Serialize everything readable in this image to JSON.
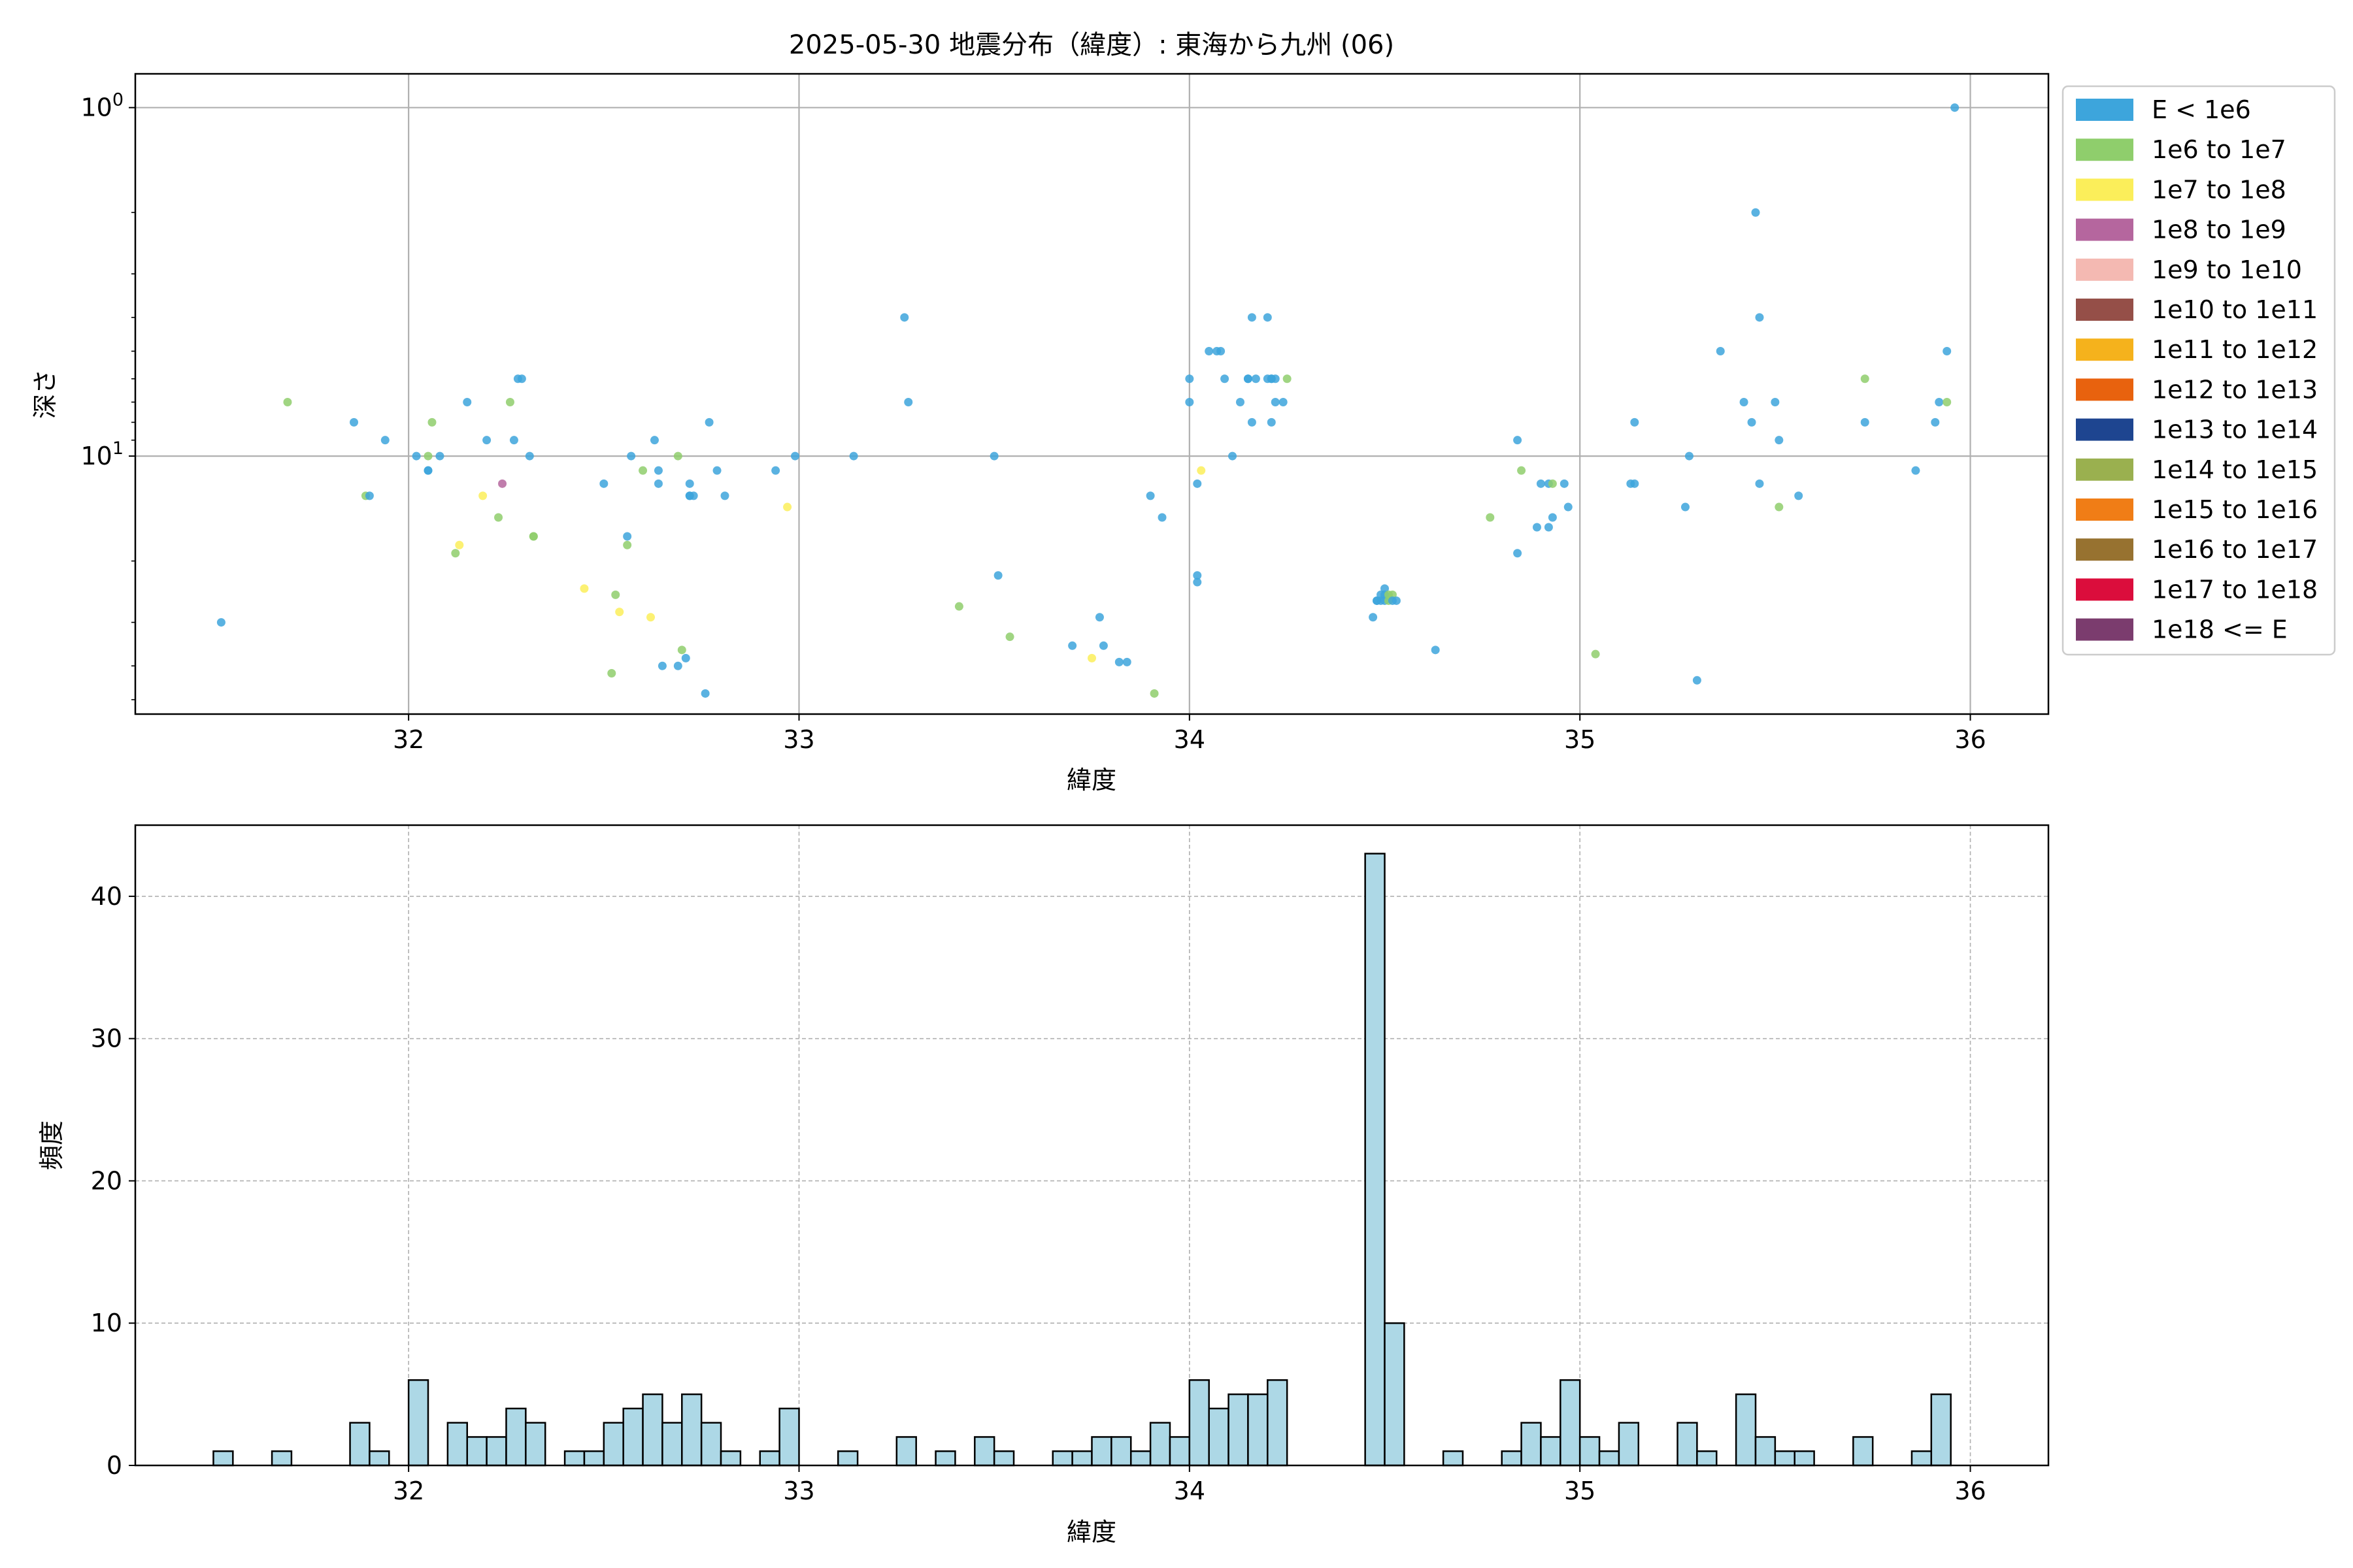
{
  "title": "2025-05-30 地震分布（緯度）: 東海から九州 (06)",
  "chart_data": [
    {
      "type": "scatter",
      "title": "2025-05-30 地震分布（緯度）: 東海から九州 (06)",
      "xlabel": "緯度",
      "ylabel": "深さ",
      "xlim": [
        31.3,
        36.2
      ],
      "ylim": [
        55,
        0.8
      ],
      "yscale": "log",
      "y_inverted": true,
      "grid": true,
      "x_ticks": [
        32,
        33,
        34,
        35,
        36
      ],
      "y_ticks": [
        1,
        10
      ],
      "legend_placement": "outside-right",
      "legend": [
        {
          "label": "E < 1e6",
          "color": "#3da5dc"
        },
        {
          "label": "1e6 to 1e7",
          "color": "#8fce6c"
        },
        {
          "label": "1e7 to 1e8",
          "color": "#fbee5a"
        },
        {
          "label": "1e8 to 1e9",
          "color": "#b5669e"
        },
        {
          "label": "1e9 to 1e10",
          "color": "#f4b9b2"
        },
        {
          "label": "1e10 to 1e11",
          "color": "#954f48"
        },
        {
          "label": "1e11 to 1e12",
          "color": "#f5b21c"
        },
        {
          "label": "1e12 to 1e13",
          "color": "#e8620e"
        },
        {
          "label": "1e13 to 1e14",
          "color": "#1e4590"
        },
        {
          "label": "1e14 to 1e15",
          "color": "#9ab04f"
        },
        {
          "label": "1e15 to 1e16",
          "color": "#f07d16"
        },
        {
          "label": "1e16 to 1e17",
          "color": "#977230"
        },
        {
          "label": "1e17 to 1e18",
          "color": "#db0d3c"
        },
        {
          "label": "1e18 <= E",
          "color": "#7b3c6e"
        }
      ],
      "points": [
        [
          31.52,
          30,
          0
        ],
        [
          31.69,
          7,
          1
        ],
        [
          31.86,
          8,
          0
        ],
        [
          31.89,
          13,
          1
        ],
        [
          31.9,
          13,
          0
        ],
        [
          31.94,
          9,
          0
        ],
        [
          32.02,
          10,
          0
        ],
        [
          32.05,
          11,
          0
        ],
        [
          32.05,
          10,
          1
        ],
        [
          32.06,
          8,
          1
        ],
        [
          32.05,
          11,
          0
        ],
        [
          32.08,
          10,
          0
        ],
        [
          32.12,
          19,
          1
        ],
        [
          32.13,
          18,
          2
        ],
        [
          32.15,
          7,
          0
        ],
        [
          32.19,
          13,
          2
        ],
        [
          32.2,
          9,
          0
        ],
        [
          32.23,
          15,
          1
        ],
        [
          32.24,
          12,
          3
        ],
        [
          32.26,
          7,
          1
        ],
        [
          32.27,
          9,
          0
        ],
        [
          32.28,
          6,
          0
        ],
        [
          32.29,
          6,
          0
        ],
        [
          32.31,
          10,
          0
        ],
        [
          32.32,
          17,
          1
        ],
        [
          32.32,
          17,
          1
        ],
        [
          32.45,
          24,
          2
        ],
        [
          32.5,
          12,
          0
        ],
        [
          32.52,
          42,
          1
        ],
        [
          32.53,
          25,
          1
        ],
        [
          32.54,
          28,
          2
        ],
        [
          32.56,
          18,
          1
        ],
        [
          32.56,
          17,
          0
        ],
        [
          32.57,
          10,
          0
        ],
        [
          32.6,
          11,
          1
        ],
        [
          32.62,
          29,
          2
        ],
        [
          32.63,
          9,
          0
        ],
        [
          32.64,
          12,
          0
        ],
        [
          32.64,
          11,
          0
        ],
        [
          32.65,
          40,
          0
        ],
        [
          32.69,
          10,
          1
        ],
        [
          32.69,
          40,
          0
        ],
        [
          32.7,
          36,
          1
        ],
        [
          32.71,
          38,
          0
        ],
        [
          32.72,
          12,
          0
        ],
        [
          32.72,
          13,
          0
        ],
        [
          32.72,
          13,
          0
        ],
        [
          32.73,
          13,
          0
        ],
        [
          32.76,
          48,
          0
        ],
        [
          32.77,
          8,
          0
        ],
        [
          32.79,
          11,
          0
        ],
        [
          32.81,
          13,
          0
        ],
        [
          32.94,
          11,
          0
        ],
        [
          32.97,
          14,
          2
        ],
        [
          32.99,
          10,
          0
        ],
        [
          33.14,
          10,
          0
        ],
        [
          33.27,
          4,
          0
        ],
        [
          33.28,
          7,
          0
        ],
        [
          33.41,
          27,
          1
        ],
        [
          33.5,
          10,
          0
        ],
        [
          33.51,
          22,
          0
        ],
        [
          33.54,
          33,
          1
        ],
        [
          33.7,
          35,
          0
        ],
        [
          33.75,
          38,
          2
        ],
        [
          33.77,
          29,
          0
        ],
        [
          33.78,
          35,
          0
        ],
        [
          33.82,
          39,
          0
        ],
        [
          33.84,
          39,
          0
        ],
        [
          33.9,
          13,
          0
        ],
        [
          33.91,
          48,
          1
        ],
        [
          33.93,
          15,
          0
        ],
        [
          34.0,
          6,
          0
        ],
        [
          34.0,
          7,
          0
        ],
        [
          34.02,
          12,
          0
        ],
        [
          34.02,
          22,
          0
        ],
        [
          34.02,
          23,
          0
        ],
        [
          34.03,
          11,
          2
        ],
        [
          34.05,
          5,
          0
        ],
        [
          34.07,
          5,
          0
        ],
        [
          34.08,
          5,
          0
        ],
        [
          34.09,
          6,
          0
        ],
        [
          34.11,
          10,
          0
        ],
        [
          34.13,
          7,
          0
        ],
        [
          34.15,
          6,
          0
        ],
        [
          34.15,
          6,
          0
        ],
        [
          34.16,
          8,
          0
        ],
        [
          34.16,
          4,
          0
        ],
        [
          34.17,
          6,
          0
        ],
        [
          34.2,
          4,
          0
        ],
        [
          34.2,
          6,
          0
        ],
        [
          34.21,
          6,
          0
        ],
        [
          34.21,
          8,
          0
        ],
        [
          34.21,
          6,
          0
        ],
        [
          34.22,
          6,
          0
        ],
        [
          34.22,
          7,
          0
        ],
        [
          34.24,
          7,
          0
        ],
        [
          34.25,
          6,
          1
        ],
        [
          34.47,
          29,
          0
        ],
        [
          34.48,
          26,
          0
        ],
        [
          34.48,
          26,
          0
        ],
        [
          34.49,
          25,
          0
        ],
        [
          34.49,
          26,
          0
        ],
        [
          34.5,
          24,
          0
        ],
        [
          34.5,
          25,
          0
        ],
        [
          34.5,
          26,
          0
        ],
        [
          34.51,
          25,
          1
        ],
        [
          34.51,
          26,
          1
        ],
        [
          34.52,
          25,
          1
        ],
        [
          34.52,
          26,
          0
        ],
        [
          34.53,
          26,
          0
        ],
        [
          34.63,
          36,
          0
        ],
        [
          34.77,
          15,
          1
        ],
        [
          34.84,
          19,
          0
        ],
        [
          34.84,
          9,
          0
        ],
        [
          34.85,
          11,
          1
        ],
        [
          34.89,
          16,
          0
        ],
        [
          34.9,
          12,
          0
        ],
        [
          34.92,
          12,
          0
        ],
        [
          34.92,
          16,
          0
        ],
        [
          34.93,
          12,
          1
        ],
        [
          34.93,
          15,
          0
        ],
        [
          34.96,
          12,
          0
        ],
        [
          34.97,
          14,
          0
        ],
        [
          35.04,
          37,
          1
        ],
        [
          35.13,
          12,
          0
        ],
        [
          35.14,
          12,
          0
        ],
        [
          35.14,
          8,
          0
        ],
        [
          35.27,
          14,
          0
        ],
        [
          35.28,
          10,
          0
        ],
        [
          35.3,
          44,
          0
        ],
        [
          35.36,
          5,
          0
        ],
        [
          35.42,
          7,
          0
        ],
        [
          35.44,
          8,
          0
        ],
        [
          35.45,
          2,
          0
        ],
        [
          35.46,
          12,
          0
        ],
        [
          35.46,
          4,
          0
        ],
        [
          35.51,
          14,
          1
        ],
        [
          35.5,
          7,
          0
        ],
        [
          35.51,
          9,
          0
        ],
        [
          35.56,
          13,
          0
        ],
        [
          35.73,
          6,
          1
        ],
        [
          35.73,
          8,
          0
        ],
        [
          35.86,
          11,
          0
        ],
        [
          35.91,
          8,
          0
        ],
        [
          35.92,
          7,
          0
        ],
        [
          35.94,
          5,
          0
        ],
        [
          35.94,
          7,
          1
        ],
        [
          35.96,
          1,
          0
        ]
      ]
    },
    {
      "type": "bar",
      "subtype": "histogram",
      "xlabel": "緯度",
      "ylabel": "頻度",
      "xlim": [
        31.3,
        36.2
      ],
      "ylim": [
        0,
        45
      ],
      "bin_width": 0.05,
      "x_ticks": [
        32,
        33,
        34,
        35,
        36
      ],
      "y_ticks": [
        0,
        10,
        20,
        30,
        40
      ],
      "bar_color": "#add8e6",
      "grid": true,
      "bins": [
        [
          31.5,
          1
        ],
        [
          31.65,
          1
        ],
        [
          31.85,
          3
        ],
        [
          31.9,
          1
        ],
        [
          32.0,
          6
        ],
        [
          32.1,
          3
        ],
        [
          32.15,
          2
        ],
        [
          32.2,
          2
        ],
        [
          32.25,
          4
        ],
        [
          32.3,
          3
        ],
        [
          32.4,
          1
        ],
        [
          32.45,
          1
        ],
        [
          32.5,
          3
        ],
        [
          32.55,
          4
        ],
        [
          32.6,
          5
        ],
        [
          32.65,
          3
        ],
        [
          32.7,
          5
        ],
        [
          32.75,
          3
        ],
        [
          32.8,
          1
        ],
        [
          32.9,
          1
        ],
        [
          32.95,
          4
        ],
        [
          33.1,
          1
        ],
        [
          33.25,
          2
        ],
        [
          33.35,
          1
        ],
        [
          33.45,
          2
        ],
        [
          33.5,
          1
        ],
        [
          33.65,
          1
        ],
        [
          33.7,
          1
        ],
        [
          33.75,
          2
        ],
        [
          33.8,
          2
        ],
        [
          33.85,
          1
        ],
        [
          33.9,
          3
        ],
        [
          33.95,
          2
        ],
        [
          34.0,
          6
        ],
        [
          34.05,
          4
        ],
        [
          34.1,
          5
        ],
        [
          34.15,
          5
        ],
        [
          34.2,
          6
        ],
        [
          34.45,
          43
        ],
        [
          34.5,
          10
        ],
        [
          34.65,
          1
        ],
        [
          34.8,
          1
        ],
        [
          34.85,
          3
        ],
        [
          34.9,
          2
        ],
        [
          34.95,
          6
        ],
        [
          35.0,
          2
        ],
        [
          35.05,
          1
        ],
        [
          35.1,
          3
        ],
        [
          35.25,
          3
        ],
        [
          35.3,
          1
        ],
        [
          35.4,
          5
        ],
        [
          35.45,
          2
        ],
        [
          35.5,
          1
        ],
        [
          35.55,
          1
        ],
        [
          35.7,
          2
        ],
        [
          35.85,
          1
        ],
        [
          35.9,
          5
        ]
      ]
    }
  ]
}
